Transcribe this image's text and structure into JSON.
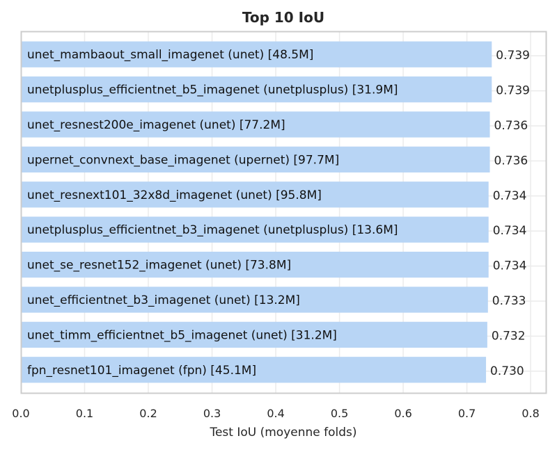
{
  "chart_data": {
    "type": "bar",
    "orientation": "horizontal",
    "title": "Top 10 IoU",
    "xlabel": "Test IoU (moyenne folds)",
    "ylabel": "",
    "xlim": [
      0,
      0.825
    ],
    "xticks": [
      "0.0",
      "0.1",
      "0.2",
      "0.3",
      "0.4",
      "0.5",
      "0.6",
      "0.7",
      "0.8"
    ],
    "grid": true,
    "bar_color": "#b8d5f5",
    "categories": [
      "unet_mambaout_small_imagenet (unet) [48.5M]",
      "unetplusplus_efficientnet_b5_imagenet (unetplusplus) [31.9M]",
      "unet_resnest200e_imagenet (unet) [77.2M]",
      "upernet_convnext_base_imagenet (upernet) [97.7M]",
      "unet_resnext101_32x8d_imagenet (unet) [95.8M]",
      "unetplusplus_efficientnet_b3_imagenet (unetplusplus) [13.6M]",
      "unet_se_resnet152_imagenet (unet) [73.8M]",
      "unet_efficientnet_b3_imagenet (unet) [13.2M]",
      "unet_timm_efficientnet_b5_imagenet (unet) [31.2M]",
      "fpn_resnet101_imagenet (fpn) [45.1M]"
    ],
    "values": [
      0.739,
      0.739,
      0.736,
      0.736,
      0.734,
      0.734,
      0.734,
      0.733,
      0.732,
      0.73
    ],
    "value_labels": [
      "0.739",
      "0.739",
      "0.736",
      "0.736",
      "0.734",
      "0.734",
      "0.734",
      "0.733",
      "0.732",
      "0.730"
    ]
  }
}
